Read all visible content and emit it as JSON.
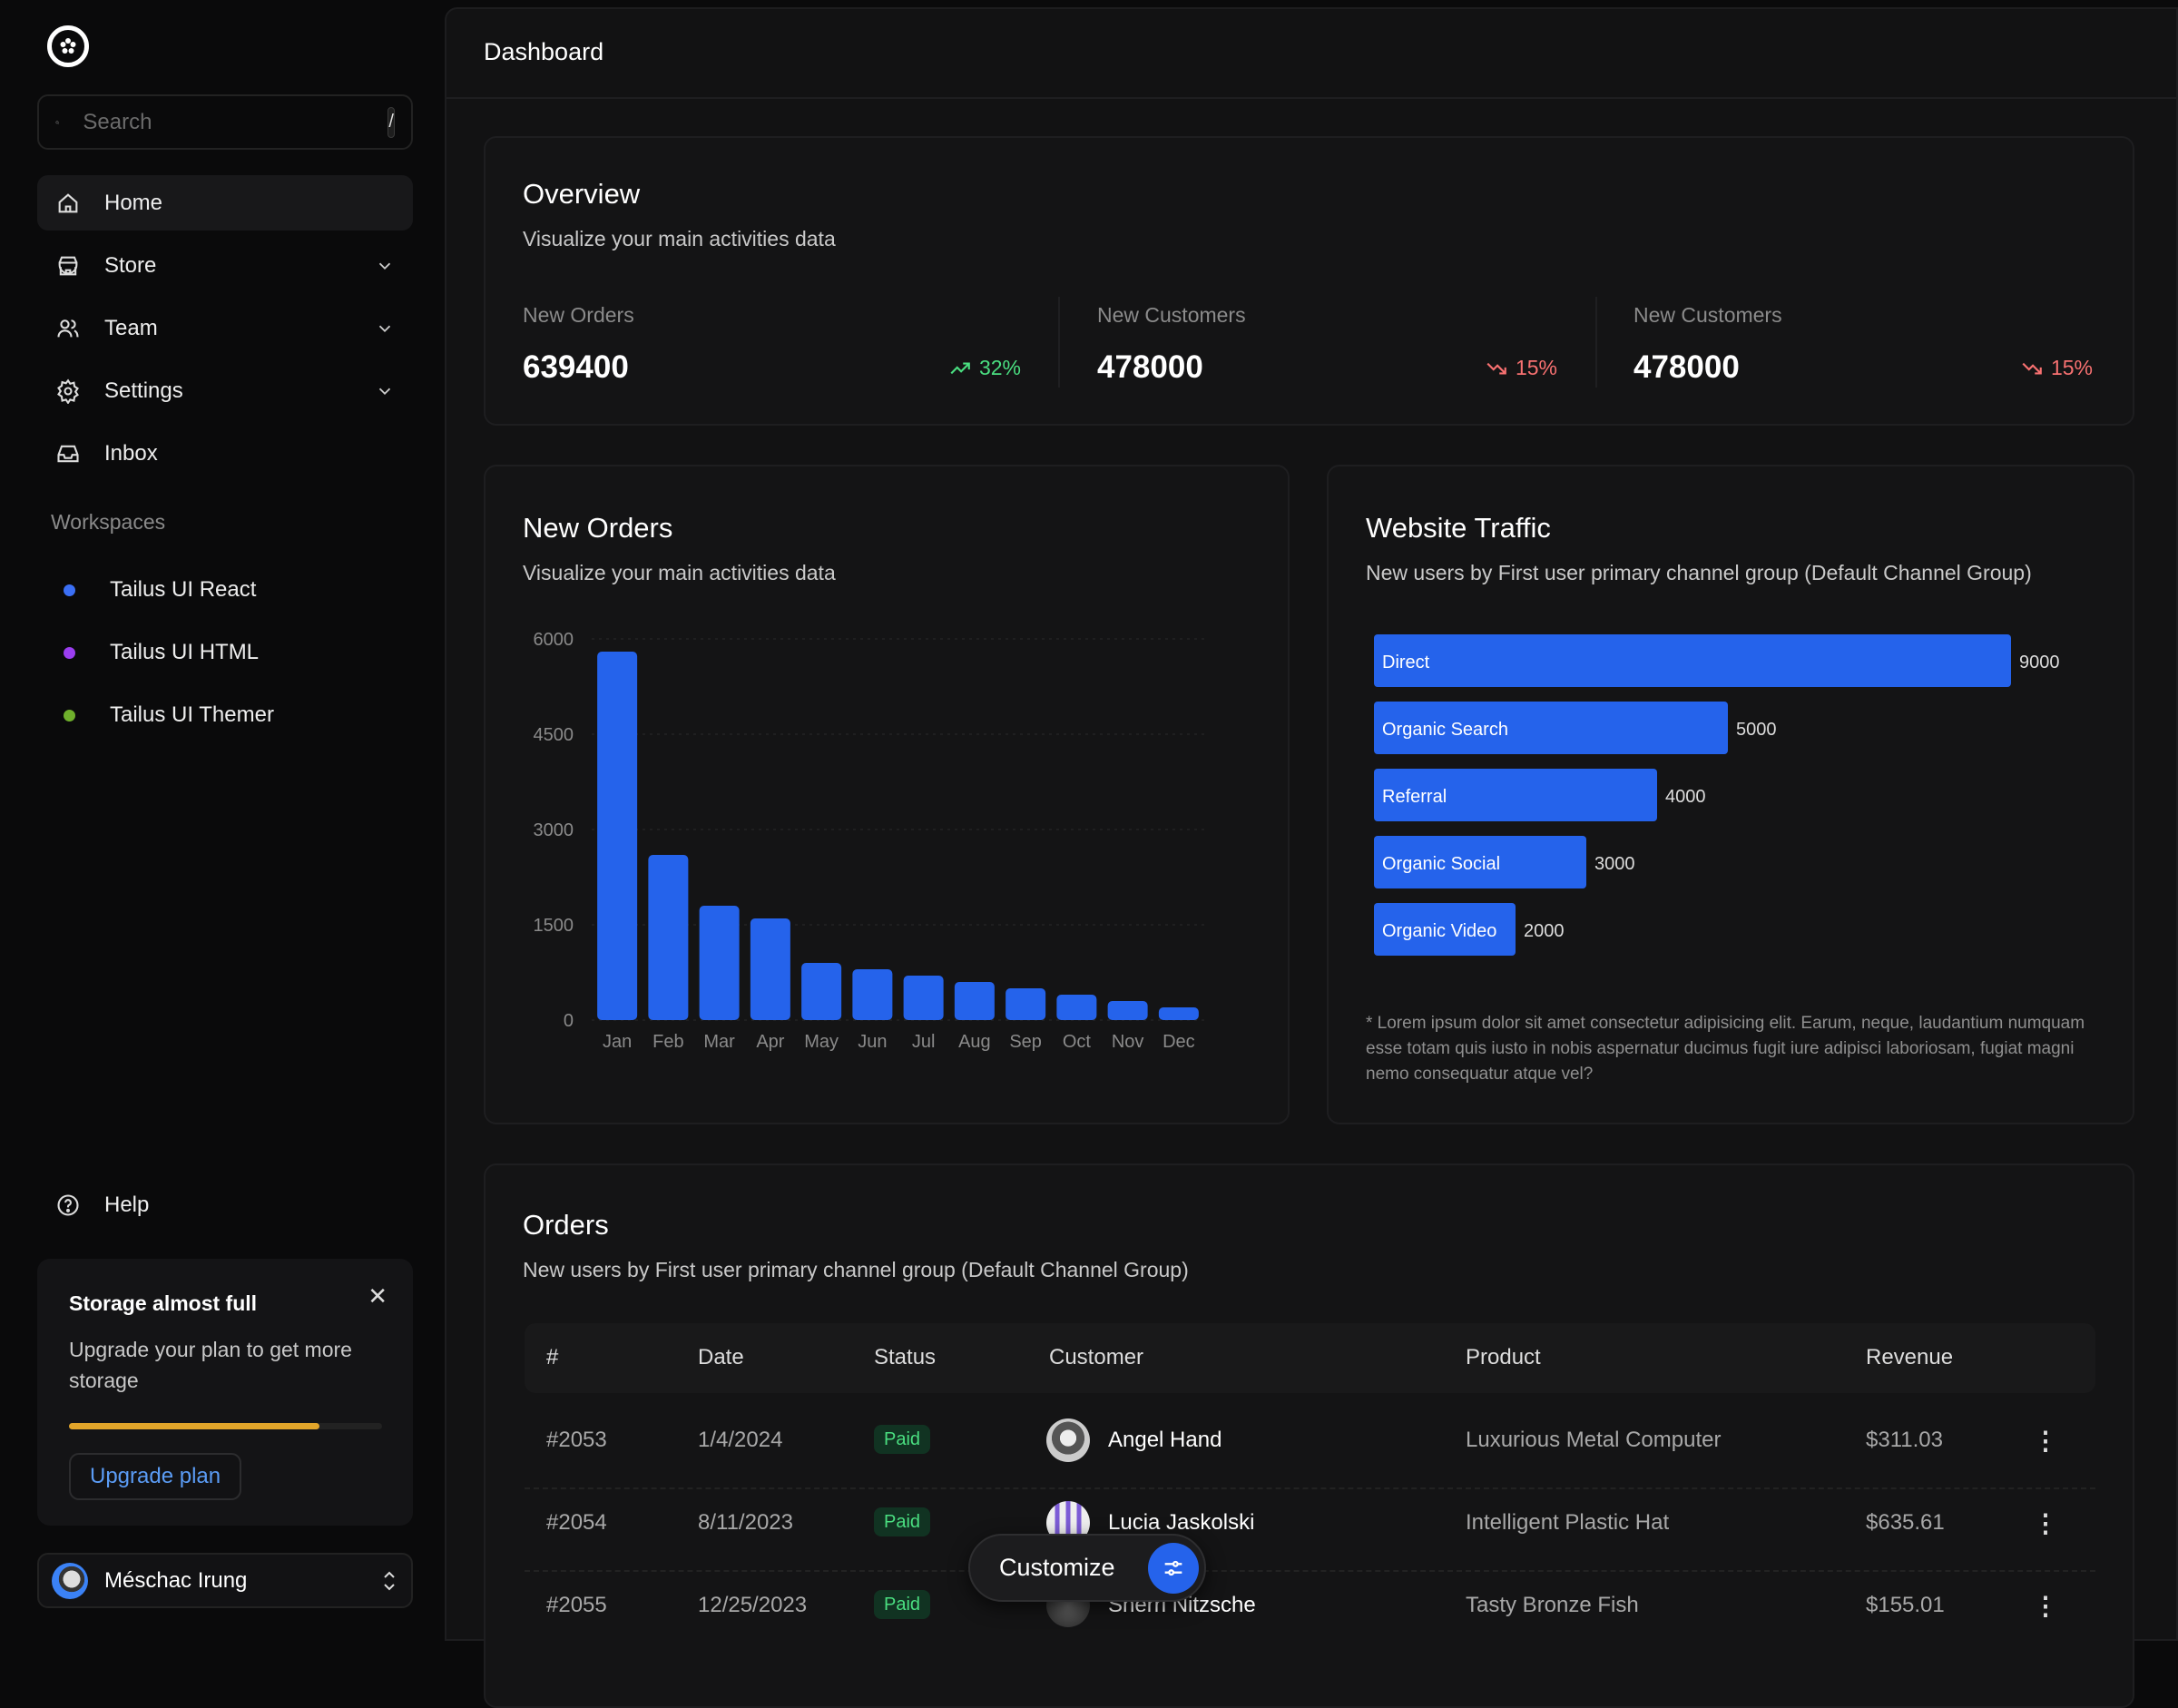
{
  "sidebar": {
    "search": {
      "placeholder": "Search",
      "shortcut": "/"
    },
    "nav": [
      {
        "label": "Home",
        "icon": "home-icon",
        "active": true
      },
      {
        "label": "Store",
        "icon": "store-icon"
      },
      {
        "label": "Team",
        "icon": "users-icon"
      },
      {
        "label": "Settings",
        "icon": "gear-icon"
      },
      {
        "label": "Inbox",
        "icon": "inbox-icon"
      }
    ],
    "workspaces_title": "Workspaces",
    "workspaces": [
      {
        "label": "Tailus UI React",
        "color": "#3b6ff5"
      },
      {
        "label": "Tailus UI HTML",
        "color": "#9b3ef0"
      },
      {
        "label": "Tailus UI Themer",
        "color": "#6fb02c"
      }
    ],
    "help": "Help",
    "storage": {
      "title": "Storage almost full",
      "text": "Upgrade your plan to get more storage",
      "progress": 0.8,
      "button": "Upgrade plan"
    },
    "user": {
      "name": "Méschac Irung"
    }
  },
  "header": {
    "title": "Dashboard"
  },
  "overview": {
    "title": "Overview",
    "subtitle": "Visualize your main activities data",
    "stats": [
      {
        "label": "New Orders",
        "value": "639400",
        "trend": "32%",
        "dir": "up"
      },
      {
        "label": "New Customers",
        "value": "478000",
        "trend": "15%",
        "dir": "down"
      },
      {
        "label": "New Customers",
        "value": "478000",
        "trend": "15%",
        "dir": "down"
      }
    ]
  },
  "colors": {
    "accent": "#2563eb",
    "up": "#4ade80",
    "down": "#f87171"
  },
  "chart_data": [
    {
      "type": "bar",
      "title": "New Orders",
      "subtitle": "Visualize your main activities data",
      "categories": [
        "Jan",
        "Feb",
        "Mar",
        "Apr",
        "May",
        "Jun",
        "Jul",
        "Aug",
        "Sep",
        "Oct",
        "Nov",
        "Dec"
      ],
      "values": [
        5800,
        2600,
        1800,
        1600,
        900,
        800,
        700,
        600,
        500,
        400,
        300,
        200
      ],
      "yticks": [
        "0",
        "1500",
        "3000",
        "4500",
        "6000"
      ],
      "ylim": [
        0,
        6000
      ],
      "grid": true
    },
    {
      "type": "bar",
      "orientation": "horizontal",
      "title": "Website Traffic",
      "subtitle": "New users by First user primary channel group (Default Channel Group)",
      "categories": [
        "Direct",
        "Organic Search",
        "Referral",
        "Organic Social",
        "Organic Video"
      ],
      "values": [
        9000,
        5000,
        4000,
        3000,
        2000
      ],
      "xlim": [
        0,
        10000
      ],
      "note": "* Lorem ipsum dolor sit amet consectetur adipisicing elit. Earum, neque, laudantium numquam esse totam quis iusto in nobis aspernatur ducimus fugit iure adipisci laboriosam, fugiat magni nemo consequatur atque vel?"
    }
  ],
  "orders": {
    "title": "Orders",
    "subtitle": "New users by First user primary channel group (Default Channel Group)",
    "columns": [
      "#",
      "Date",
      "Status",
      "Customer",
      "Product",
      "Revenue"
    ],
    "rows": [
      {
        "id": "#2053",
        "date": "1/4/2024",
        "status": "Paid",
        "customer": "Angel Hand",
        "product": "Luxurious Metal Computer",
        "revenue": "$311.03"
      },
      {
        "id": "#2054",
        "date": "8/11/2023",
        "status": "Paid",
        "customer": "Lucia Jaskolski",
        "product": "Intelligent Plastic Hat",
        "revenue": "$635.61"
      },
      {
        "id": "#2055",
        "date": "12/25/2023",
        "status": "Paid",
        "customer": "Sherri Nitzsche",
        "product": "Tasty Bronze Fish",
        "revenue": "$155.01"
      }
    ]
  },
  "customize": {
    "label": "Customize"
  }
}
